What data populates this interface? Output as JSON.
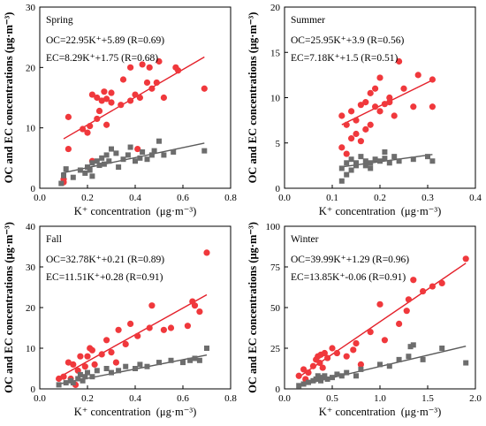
{
  "colors": {
    "oc": "#f0383c",
    "ec": "#6d6d6d",
    "oc_line": "#e4202a",
    "ec_line": "#5a5a5a"
  },
  "labels": {
    "xlabel": "K⁺ concentration  (μg·m⁻³)",
    "ylabel": "OC and EC concentrations (μg·m⁻³)"
  },
  "chart_data": [
    {
      "type": "scatter",
      "title": "Spring",
      "xlabel": "K⁺ concentration  (μg·m⁻³)",
      "ylabel": "OC and EC concentrations (μg·m⁻³)",
      "xlim": [
        0,
        0.8
      ],
      "ylim": [
        0,
        30
      ],
      "xticks": [
        "0.0",
        "0.2",
        "0.4",
        "0.6",
        "0.8"
      ],
      "yticks": [
        "0",
        "10",
        "20",
        "30"
      ],
      "annotations": [
        "OC=22.95K⁺+5.89 (R=0.69)",
        "EC=8.29K⁺+1.75 (R=0.68)"
      ],
      "fits": [
        {
          "series": "OC",
          "slope": 22.95,
          "intercept": 5.89
        },
        {
          "series": "EC",
          "slope": 8.29,
          "intercept": 1.75
        }
      ],
      "series": [
        {
          "name": "OC",
          "marker": "circle",
          "points": [
            [
              0.1,
              1.5
            ],
            [
              0.1,
              1.0
            ],
            [
              0.12,
              11.8
            ],
            [
              0.12,
              6.5
            ],
            [
              0.18,
              9.8
            ],
            [
              0.2,
              9.2
            ],
            [
              0.21,
              10.3
            ],
            [
              0.22,
              15.5
            ],
            [
              0.22,
              4.5
            ],
            [
              0.24,
              15.0
            ],
            [
              0.24,
              11.5
            ],
            [
              0.25,
              12.8
            ],
            [
              0.26,
              14.5
            ],
            [
              0.27,
              16.0
            ],
            [
              0.28,
              14.8
            ],
            [
              0.28,
              10.5
            ],
            [
              0.3,
              15.8
            ],
            [
              0.3,
              14.2
            ],
            [
              0.34,
              13.8
            ],
            [
              0.35,
              18.0
            ],
            [
              0.38,
              20.0
            ],
            [
              0.38,
              14.5
            ],
            [
              0.4,
              15.5
            ],
            [
              0.41,
              6.5
            ],
            [
              0.42,
              15.0
            ],
            [
              0.43,
              20.5
            ],
            [
              0.45,
              17.5
            ],
            [
              0.46,
              20.0
            ],
            [
              0.47,
              16.5
            ],
            [
              0.49,
              17.5
            ],
            [
              0.5,
              21.0
            ],
            [
              0.52,
              15.0
            ],
            [
              0.57,
              20.0
            ],
            [
              0.58,
              19.5
            ],
            [
              0.69,
              16.5
            ]
          ]
        },
        {
          "name": "EC",
          "marker": "square",
          "points": [
            [
              0.09,
              0.8
            ],
            [
              0.1,
              2.1
            ],
            [
              0.11,
              3.2
            ],
            [
              0.14,
              1.8
            ],
            [
              0.17,
              3.0
            ],
            [
              0.19,
              2.5
            ],
            [
              0.2,
              3.5
            ],
            [
              0.21,
              3.0
            ],
            [
              0.22,
              2.0
            ],
            [
              0.22,
              4.2
            ],
            [
              0.24,
              4.5
            ],
            [
              0.25,
              3.8
            ],
            [
              0.26,
              5.0
            ],
            [
              0.27,
              4.0
            ],
            [
              0.28,
              5.5
            ],
            [
              0.29,
              4.5
            ],
            [
              0.3,
              6.5
            ],
            [
              0.32,
              5.8
            ],
            [
              0.33,
              3.5
            ],
            [
              0.35,
              4.8
            ],
            [
              0.37,
              5.5
            ],
            [
              0.38,
              6.8
            ],
            [
              0.4,
              4.5
            ],
            [
              0.42,
              5.0
            ],
            [
              0.43,
              6.0
            ],
            [
              0.45,
              4.8
            ],
            [
              0.47,
              5.5
            ],
            [
              0.48,
              6.2
            ],
            [
              0.5,
              7.8
            ],
            [
              0.52,
              5.5
            ],
            [
              0.56,
              6.0
            ],
            [
              0.69,
              6.2
            ]
          ]
        }
      ]
    },
    {
      "type": "scatter",
      "title": "Summer",
      "xlabel": "K⁺ concentration  (μg·m⁻³)",
      "ylabel": "OC and EC concentrations (μg·m⁻³)",
      "xlim": [
        0,
        0.4
      ],
      "ylim": [
        0,
        20
      ],
      "xticks": [
        "0.0",
        "0.1",
        "0.2",
        "0.3",
        "0.4"
      ],
      "yticks": [
        "0",
        "5",
        "10",
        "15",
        "20"
      ],
      "annotations": [
        "OC=25.95K⁺+3.9 (R=0.56)",
        "EC=7.18K⁺+1.5 (R=0.51)"
      ],
      "fits": [
        {
          "series": "OC",
          "slope": 25.95,
          "intercept": 3.9
        },
        {
          "series": "EC",
          "slope": 7.18,
          "intercept": 1.5
        }
      ],
      "series": [
        {
          "name": "OC",
          "marker": "circle",
          "points": [
            [
              0.12,
              4.5
            ],
            [
              0.12,
              8.0
            ],
            [
              0.13,
              3.8
            ],
            [
              0.13,
              7.0
            ],
            [
              0.14,
              5.5
            ],
            [
              0.14,
              8.5
            ],
            [
              0.15,
              6.0
            ],
            [
              0.15,
              7.5
            ],
            [
              0.16,
              5.2
            ],
            [
              0.16,
              9.2
            ],
            [
              0.17,
              9.5
            ],
            [
              0.17,
              6.5
            ],
            [
              0.18,
              10.5
            ],
            [
              0.18,
              7.0
            ],
            [
              0.19,
              11.0
            ],
            [
              0.19,
              9.0
            ],
            [
              0.2,
              8.5
            ],
            [
              0.2,
              12.2
            ],
            [
              0.21,
              9.3
            ],
            [
              0.22,
              10.0
            ],
            [
              0.22,
              9.5
            ],
            [
              0.23,
              8.0
            ],
            [
              0.24,
              14.0
            ],
            [
              0.25,
              11.0
            ],
            [
              0.27,
              9.0
            ],
            [
              0.28,
              12.5
            ],
            [
              0.31,
              12.0
            ],
            [
              0.31,
              9.0
            ]
          ]
        },
        {
          "name": "EC",
          "marker": "square",
          "points": [
            [
              0.12,
              2.2
            ],
            [
              0.12,
              0.8
            ],
            [
              0.13,
              1.5
            ],
            [
              0.13,
              2.8
            ],
            [
              0.14,
              2.0
            ],
            [
              0.14,
              3.2
            ],
            [
              0.15,
              2.5
            ],
            [
              0.15,
              2.8
            ],
            [
              0.16,
              3.5
            ],
            [
              0.17,
              2.5
            ],
            [
              0.17,
              3.0
            ],
            [
              0.18,
              2.8
            ],
            [
              0.18,
              2.2
            ],
            [
              0.19,
              3.2
            ],
            [
              0.2,
              3.0
            ],
            [
              0.21,
              4.0
            ],
            [
              0.21,
              3.3
            ],
            [
              0.22,
              2.8
            ],
            [
              0.23,
              3.5
            ],
            [
              0.24,
              3.0
            ],
            [
              0.27,
              3.2
            ],
            [
              0.3,
              3.5
            ],
            [
              0.31,
              3.0
            ]
          ]
        }
      ]
    },
    {
      "type": "scatter",
      "title": "Fall",
      "xlabel": "K⁺ concentration  (μg·m⁻³)",
      "ylabel": "OC and EC concentrations (μg·m⁻³)",
      "xlim": [
        0,
        0.8
      ],
      "ylim": [
        0,
        40
      ],
      "xticks": [
        "0.0",
        "0.2",
        "0.4",
        "0.6",
        "0.8"
      ],
      "yticks": [
        "0",
        "10",
        "20",
        "30",
        "40"
      ],
      "annotations": [
        "OC=32.78K⁺+0.21 (R=0.89)",
        "EC=11.51K⁺+0.28 (R=0.91)"
      ],
      "fits": [
        {
          "series": "OC",
          "slope": 32.78,
          "intercept": 0.21
        },
        {
          "series": "EC",
          "slope": 11.51,
          "intercept": 0.28
        }
      ],
      "series": [
        {
          "name": "OC",
          "marker": "circle",
          "points": [
            [
              0.08,
              2.5
            ],
            [
              0.1,
              3.0
            ],
            [
              0.12,
              6.5
            ],
            [
              0.13,
              2.5
            ],
            [
              0.14,
              6.0
            ],
            [
              0.15,
              1.0
            ],
            [
              0.16,
              4.5
            ],
            [
              0.17,
              8.0
            ],
            [
              0.19,
              5.5
            ],
            [
              0.2,
              8.0
            ],
            [
              0.21,
              10.0
            ],
            [
              0.22,
              9.5
            ],
            [
              0.23,
              6.0
            ],
            [
              0.26,
              8.5
            ],
            [
              0.28,
              12.0
            ],
            [
              0.3,
              9.0
            ],
            [
              0.32,
              6.5
            ],
            [
              0.33,
              14.5
            ],
            [
              0.36,
              11.0
            ],
            [
              0.38,
              16.0
            ],
            [
              0.41,
              13.0
            ],
            [
              0.46,
              15.0
            ],
            [
              0.47,
              20.5
            ],
            [
              0.52,
              14.5
            ],
            [
              0.55,
              15.0
            ],
            [
              0.62,
              15.5
            ],
            [
              0.64,
              21.5
            ],
            [
              0.65,
              20.5
            ],
            [
              0.67,
              19.0
            ],
            [
              0.7,
              33.5
            ]
          ]
        },
        {
          "name": "EC",
          "marker": "square",
          "points": [
            [
              0.08,
              1.0
            ],
            [
              0.11,
              1.5
            ],
            [
              0.13,
              2.0
            ],
            [
              0.14,
              1.5
            ],
            [
              0.16,
              2.5
            ],
            [
              0.17,
              3.5
            ],
            [
              0.18,
              2.0
            ],
            [
              0.19,
              3.0
            ],
            [
              0.2,
              4.0
            ],
            [
              0.22,
              3.0
            ],
            [
              0.24,
              4.5
            ],
            [
              0.28,
              5.0
            ],
            [
              0.3,
              4.0
            ],
            [
              0.33,
              4.5
            ],
            [
              0.36,
              5.5
            ],
            [
              0.4,
              5.0
            ],
            [
              0.42,
              6.0
            ],
            [
              0.45,
              5.5
            ],
            [
              0.5,
              6.5
            ],
            [
              0.55,
              7.0
            ],
            [
              0.6,
              6.5
            ],
            [
              0.63,
              7.0
            ],
            [
              0.65,
              7.5
            ],
            [
              0.67,
              7.0
            ],
            [
              0.7,
              10.0
            ]
          ]
        }
      ]
    },
    {
      "type": "scatter",
      "title": "Winter",
      "xlabel": "K⁺ concentration  (μg·m⁻³)",
      "ylabel": "OC and EC concentrations (μg·m⁻³)",
      "xlim": [
        0,
        2.0
      ],
      "ylim": [
        0,
        100
      ],
      "xticks": [
        "0.0",
        "0.5",
        "1.0",
        "1.5",
        "2.0"
      ],
      "yticks": [
        "0",
        "25",
        "50",
        "75",
        "100"
      ],
      "annotations": [
        "OC=39.99K⁺+1.29 (R=0.96)",
        "EC=13.85K⁺-0.06 (R=0.91)"
      ],
      "fits": [
        {
          "series": "OC",
          "slope": 39.99,
          "intercept": 1.29
        },
        {
          "series": "EC",
          "slope": 13.85,
          "intercept": -0.06
        }
      ],
      "series": [
        {
          "name": "OC",
          "marker": "circle",
          "points": [
            [
              0.15,
              8.0
            ],
            [
              0.2,
              12.0
            ],
            [
              0.22,
              6.0
            ],
            [
              0.25,
              10.0
            ],
            [
              0.3,
              14.0
            ],
            [
              0.33,
              18.0
            ],
            [
              0.35,
              20.0
            ],
            [
              0.37,
              16.0
            ],
            [
              0.38,
              21.0
            ],
            [
              0.4,
              13.0
            ],
            [
              0.42,
              22.0
            ],
            [
              0.45,
              19.0
            ],
            [
              0.5,
              25.0
            ],
            [
              0.55,
              22.0
            ],
            [
              0.65,
              20.0
            ],
            [
              0.72,
              24.0
            ],
            [
              0.75,
              28.0
            ],
            [
              0.8,
              15.0
            ],
            [
              0.9,
              35.0
            ],
            [
              1.0,
              52.0
            ],
            [
              1.05,
              30.0
            ],
            [
              1.2,
              40.0
            ],
            [
              1.28,
              48.0
            ],
            [
              1.3,
              55.0
            ],
            [
              1.35,
              67.0
            ],
            [
              1.45,
              60.0
            ],
            [
              1.55,
              63.0
            ],
            [
              1.65,
              65.0
            ],
            [
              1.9,
              80.0
            ]
          ]
        },
        {
          "name": "EC",
          "marker": "square",
          "points": [
            [
              0.15,
              2.0
            ],
            [
              0.2,
              3.0
            ],
            [
              0.25,
              4.0
            ],
            [
              0.3,
              5.0
            ],
            [
              0.33,
              6.0
            ],
            [
              0.35,
              8.0
            ],
            [
              0.38,
              5.0
            ],
            [
              0.4,
              7.0
            ],
            [
              0.42,
              8.0
            ],
            [
              0.45,
              6.0
            ],
            [
              0.5,
              7.0
            ],
            [
              0.55,
              9.0
            ],
            [
              0.6,
              8.0
            ],
            [
              0.65,
              10.0
            ],
            [
              0.75,
              8.0
            ],
            [
              0.8,
              12.0
            ],
            [
              1.0,
              15.0
            ],
            [
              1.1,
              14.0
            ],
            [
              1.2,
              18.0
            ],
            [
              1.3,
              20.0
            ],
            [
              1.32,
              26.0
            ],
            [
              1.35,
              27.0
            ],
            [
              1.45,
              18.0
            ],
            [
              1.65,
              25.0
            ],
            [
              1.9,
              16.0
            ]
          ]
        }
      ]
    }
  ]
}
